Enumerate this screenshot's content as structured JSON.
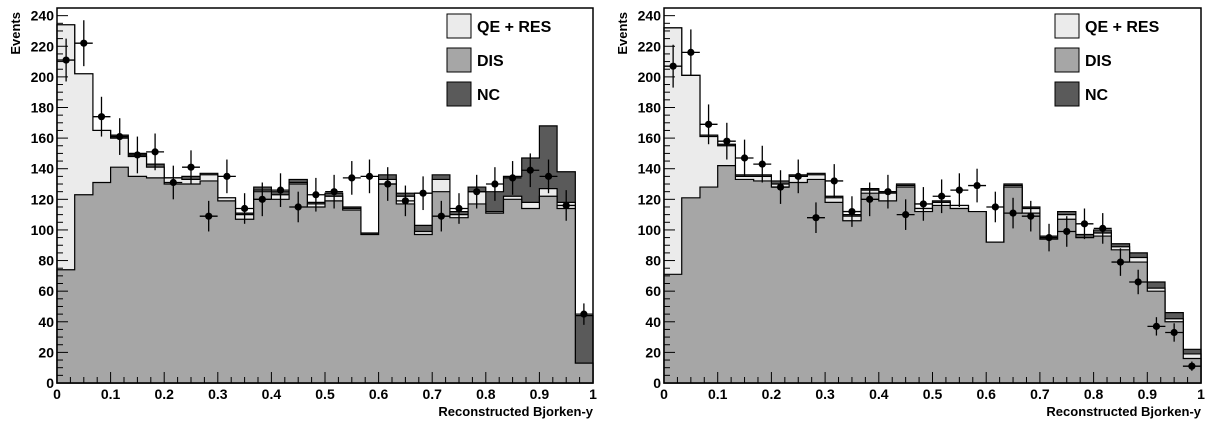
{
  "colors": {
    "qe_res": "#ebebeb",
    "dis": "#a6a6a6",
    "nc": "#5a5a5a",
    "outline": "#000000",
    "data_marker": "#000000"
  },
  "chart_data": [
    {
      "type": "histogram",
      "xlabel": "Reconstructed Bjorken-y",
      "ylabel": "Events",
      "xlim": [
        0,
        1
      ],
      "ylim": [
        0,
        245
      ],
      "xticks": [
        "0",
        "0.1",
        "0.2",
        "0.3",
        "0.4",
        "0.5",
        "0.6",
        "0.7",
        "0.8",
        "0.9",
        "1"
      ],
      "yticks": [
        "0",
        "20",
        "40",
        "60",
        "80",
        "100",
        "120",
        "140",
        "160",
        "180",
        "200",
        "220",
        "240"
      ],
      "legend_position": "top-right",
      "legend": [
        "QE + RES",
        "DIS",
        "NC"
      ],
      "bin_edges": [
        0,
        0.033,
        0.067,
        0.1,
        0.133,
        0.167,
        0.2,
        0.233,
        0.267,
        0.3,
        0.333,
        0.367,
        0.4,
        0.433,
        0.467,
        0.5,
        0.533,
        0.567,
        0.6,
        0.633,
        0.667,
        0.7,
        0.733,
        0.767,
        0.8,
        0.833,
        0.867,
        0.9,
        0.933,
        0.967,
        1
      ],
      "series": [
        {
          "name": "NC",
          "values": [
            234,
            202,
            165,
            162,
            150,
            143,
            134,
            135,
            137,
            121,
            111,
            128,
            125,
            133,
            118,
            124,
            115,
            98,
            136,
            124,
            103,
            136,
            112,
            128,
            125,
            135,
            147,
            168,
            138,
            44
          ]
        },
        {
          "name": "QE + RES",
          "values": [
            234,
            202,
            165,
            160,
            148,
            141,
            134,
            133,
            136,
            121,
            110,
            126,
            123,
            131,
            117,
            122,
            114,
            97,
            133,
            122,
            99,
            133,
            110,
            125,
            112,
            122,
            118,
            127,
            118,
            13
          ]
        },
        {
          "name": "DIS",
          "values": [
            74,
            123,
            131,
            141,
            135,
            134,
            130,
            130,
            132,
            119,
            107,
            125,
            120,
            130,
            115,
            119,
            113,
            97,
            130,
            117,
            97,
            125,
            108,
            117,
            111,
            120,
            114,
            122,
            114,
            13
          ]
        }
      ],
      "data_points": {
        "x": [
          0.017,
          0.05,
          0.083,
          0.117,
          0.15,
          0.183,
          0.217,
          0.25,
          0.283,
          0.317,
          0.35,
          0.383,
          0.417,
          0.45,
          0.483,
          0.517,
          0.55,
          0.583,
          0.617,
          0.65,
          0.683,
          0.717,
          0.75,
          0.783,
          0.817,
          0.85,
          0.883,
          0.917,
          0.95,
          0.983
        ],
        "y": [
          211,
          222,
          174,
          161,
          149,
          151,
          131,
          141,
          109,
          135,
          114,
          120,
          126,
          115,
          123,
          125,
          134,
          135,
          130,
          119,
          124,
          109,
          114,
          125,
          130,
          134,
          139,
          135,
          116,
          45
        ],
        "err": [
          14,
          15,
          13,
          12,
          12,
          12,
          11,
          11,
          10,
          11,
          10,
          11,
          11,
          10,
          11,
          11,
          11,
          11,
          11,
          10,
          11,
          10,
          10,
          11,
          11,
          11,
          11,
          11,
          10,
          7
        ]
      }
    },
    {
      "type": "histogram",
      "xlabel": "Reconstructed Bjorken-y",
      "ylabel": "Events",
      "xlim": [
        0,
        1
      ],
      "ylim": [
        0,
        245
      ],
      "xticks": [
        "0",
        "0.1",
        "0.2",
        "0.3",
        "0.4",
        "0.5",
        "0.6",
        "0.7",
        "0.8",
        "0.9",
        "1"
      ],
      "yticks": [
        "0",
        "20",
        "40",
        "60",
        "80",
        "100",
        "120",
        "140",
        "160",
        "180",
        "200",
        "220",
        "240"
      ],
      "legend_position": "top-right",
      "legend": [
        "QE + RES",
        "DIS",
        "NC"
      ],
      "bin_edges": [
        0,
        0.033,
        0.067,
        0.1,
        0.133,
        0.167,
        0.2,
        0.233,
        0.267,
        0.3,
        0.333,
        0.367,
        0.4,
        0.433,
        0.467,
        0.5,
        0.533,
        0.567,
        0.6,
        0.633,
        0.667,
        0.7,
        0.733,
        0.767,
        0.8,
        0.833,
        0.867,
        0.9,
        0.933,
        0.967,
        1
      ],
      "series": [
        {
          "name": "NC",
          "values": [
            232,
            201,
            162,
            156,
            136,
            136,
            132,
            136,
            137,
            122,
            110,
            127,
            125,
            130,
            114,
            119,
            116,
            112,
            92,
            130,
            115,
            96,
            112,
            97,
            100,
            91,
            85,
            66,
            46,
            22
          ]
        },
        {
          "name": "QE + RES",
          "values": [
            232,
            201,
            161,
            155,
            135,
            135,
            130,
            135,
            136,
            121,
            109,
            126,
            124,
            129,
            114,
            118,
            116,
            112,
            92,
            129,
            114,
            94,
            110,
            95,
            98,
            89,
            82,
            62,
            42,
            19
          ]
        },
        {
          "name": "DIS",
          "values": [
            71,
            121,
            128,
            142,
            133,
            132,
            128,
            131,
            133,
            118,
            106,
            124,
            119,
            128,
            112,
            116,
            114,
            112,
            92,
            128,
            111,
            94,
            107,
            95,
            96,
            87,
            79,
            60,
            40,
            16
          ]
        }
      ],
      "data_points": {
        "x": [
          0.017,
          0.05,
          0.083,
          0.117,
          0.15,
          0.183,
          0.217,
          0.25,
          0.283,
          0.317,
          0.35,
          0.383,
          0.417,
          0.45,
          0.483,
          0.517,
          0.55,
          0.583,
          0.617,
          0.65,
          0.683,
          0.717,
          0.75,
          0.783,
          0.817,
          0.85,
          0.883,
          0.917,
          0.95,
          0.983
        ],
        "y": [
          207,
          216,
          169,
          158,
          147,
          143,
          128,
          135,
          108,
          132,
          112,
          120,
          125,
          110,
          117,
          122,
          126,
          129,
          115,
          111,
          109,
          95,
          99,
          104,
          101,
          79,
          66,
          37,
          33,
          11
        ],
        "err": [
          14,
          15,
          13,
          12,
          12,
          12,
          11,
          11,
          10,
          11,
          10,
          11,
          11,
          10,
          11,
          11,
          11,
          11,
          10,
          10,
          10,
          9,
          10,
          10,
          10,
          9,
          8,
          6,
          6,
          3
        ]
      }
    }
  ]
}
